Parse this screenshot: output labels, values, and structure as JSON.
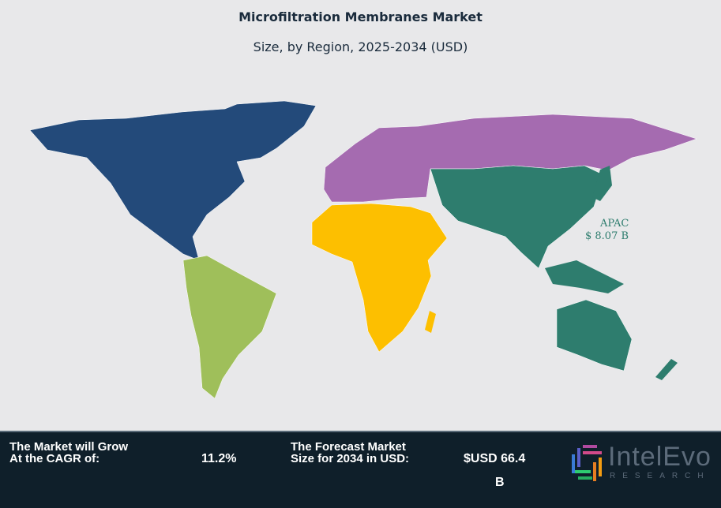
{
  "title": "Microfiltration Membranes Market",
  "subtitle": "Size, by Region, 2025-2034 (USD)",
  "map": {
    "regions": [
      {
        "name": "North America",
        "color": "#234a7a"
      },
      {
        "name": "South America",
        "color": "#9fbf5a"
      },
      {
        "name": "Europe",
        "color": "#a56bb0"
      },
      {
        "name": "Middle East & Africa",
        "color": "#fdbf00"
      },
      {
        "name": "Asia Pacific",
        "color": "#2e7d6e"
      }
    ],
    "annotation": {
      "region": "APAC",
      "value": "$ 8.07 B"
    }
  },
  "footer": {
    "cagr_label_1": "The Market will Grow",
    "cagr_label_2": "At the CAGR of:",
    "cagr_value": "11.2%",
    "forecast_label_1": "The Forecast Market",
    "forecast_label_2": "Size for 2034 in USD:",
    "forecast_value_1": "$USD 66.4",
    "forecast_value_2": "B",
    "logo_name": "IntelEvo",
    "logo_sub": "RESEARCH"
  }
}
